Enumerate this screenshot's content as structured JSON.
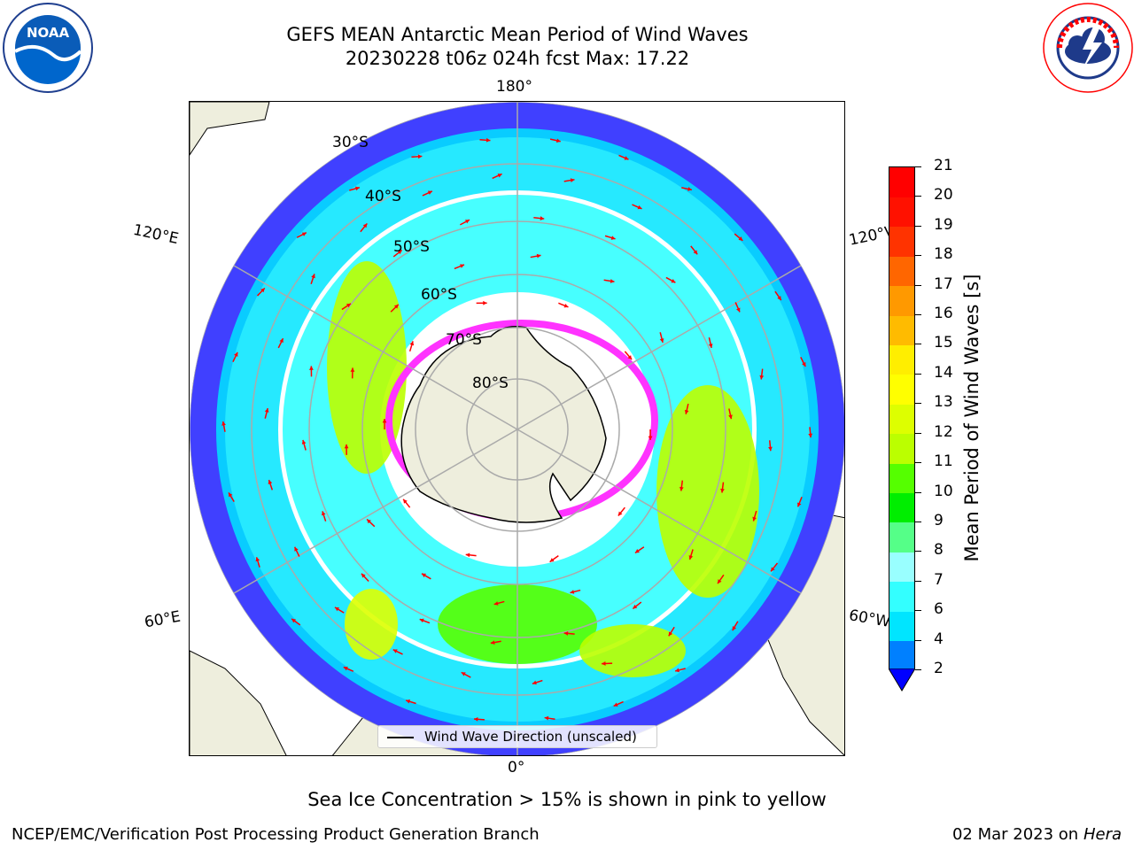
{
  "title": {
    "line1": "GEFS MEAN Antarctic Mean Period of Wind Waves",
    "line2": "20230228 t06z 024h fcst   Max: 17.22"
  },
  "logos": {
    "left": "noaa-logo",
    "left_text": "NOAA",
    "right": "national-weather-service-logo"
  },
  "map": {
    "projection": "south-polar-stereographic",
    "meridian_labels": {
      "top": "180°",
      "bottom": "0°",
      "upper_left": "120°E",
      "upper_right": "120°W",
      "lower_left": "60°E",
      "lower_right": "60°W"
    },
    "latitude_labels": [
      "30°S",
      "40°S",
      "50°S",
      "60°S",
      "70°S",
      "80°S"
    ],
    "land_color": "#eeeedd",
    "legend": "Wind Wave Direction (unscaled)",
    "arrow_color": "#ff0000",
    "sea_ice_colors": [
      "#ff33ff",
      "#ff99ff",
      "#ffff66"
    ]
  },
  "colorbar": {
    "label": "Mean Period of Wind Waves [s]",
    "ticks": [
      "2",
      "4",
      "6",
      "7",
      "8",
      "9",
      "10",
      "11",
      "12",
      "13",
      "14",
      "15",
      "16",
      "17",
      "18",
      "19",
      "20",
      "21"
    ],
    "under_color": "#0000ff",
    "colors": [
      "#0080ff",
      "#00e5ff",
      "#33ffff",
      "#99ffff",
      "#55ff88",
      "#00ee00",
      "#55ff00",
      "#bbff00",
      "#ddff00",
      "#ffff00",
      "#ffee00",
      "#ffbb00",
      "#ff9900",
      "#ff6600",
      "#ff3300",
      "#ff1100",
      "#ff0000"
    ]
  },
  "ice_note": "Sea Ice Concentration > 15% is shown in pink to yellow",
  "footer": {
    "left": "NCEP/EMC/Verification Post Processing Product Generation Branch",
    "right_date": "02 Mar 2023 on",
    "right_host": "Hera"
  }
}
